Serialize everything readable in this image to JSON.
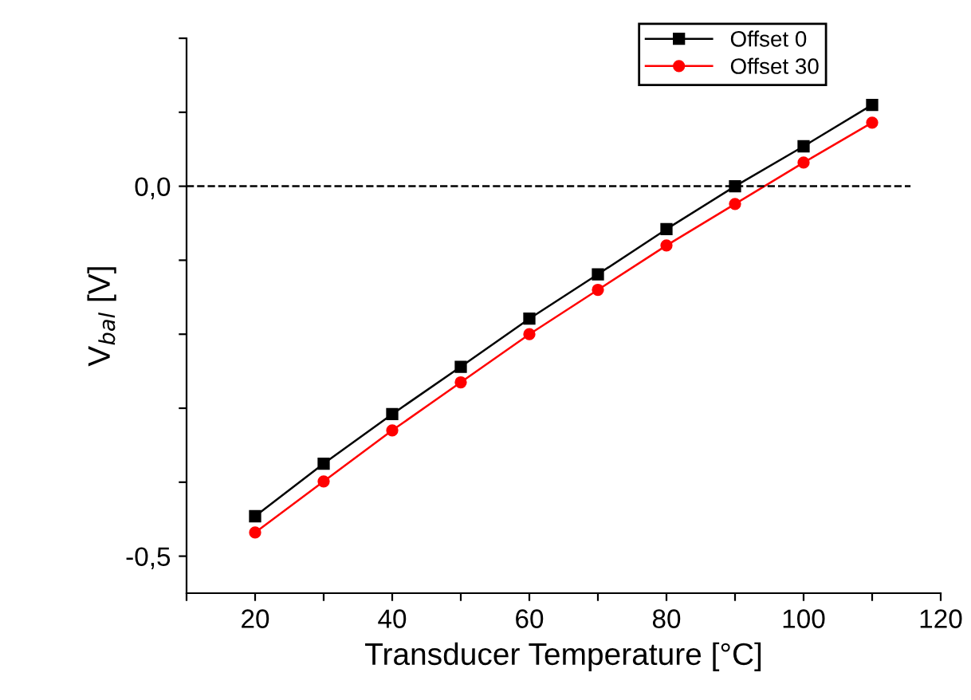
{
  "chart_data": {
    "type": "line",
    "xlabel": "Transducer Temperature [°C]",
    "ylabel": "V$_{bal}$ [V]",
    "x": [
      20,
      30,
      40,
      50,
      60,
      70,
      80,
      90,
      100,
      110
    ],
    "series": [
      {
        "name": "Offset 0",
        "color": "#000000",
        "marker": "square",
        "values": [
          -0.446,
          -0.375,
          -0.308,
          -0.244,
          -0.179,
          -0.119,
          -0.058,
          0.0,
          0.054,
          0.11
        ]
      },
      {
        "name": "Offset 30",
        "color": "#ff0000",
        "marker": "circle",
        "values": [
          -0.468,
          -0.399,
          -0.33,
          -0.265,
          -0.2,
          -0.14,
          -0.08,
          -0.024,
          0.032,
          0.086
        ]
      }
    ],
    "xlim": [
      10,
      120
    ],
    "ylim": [
      -0.55,
      0.2
    ],
    "xticks": [
      {
        "value": 10,
        "label": null
      },
      20,
      {
        "value": 30,
        "label": null
      },
      40,
      {
        "value": 50,
        "label": null
      },
      60,
      {
        "value": 70,
        "label": null
      },
      80,
      {
        "value": 90,
        "label": null
      },
      100,
      {
        "value": 110,
        "label": null
      },
      120
    ],
    "yticks": [
      {
        "value": -0.5,
        "label": "-0,5"
      },
      {
        "value": -0.4,
        "label": null
      },
      {
        "value": -0.3,
        "label": null
      },
      {
        "value": -0.2,
        "label": null
      },
      {
        "value": -0.1,
        "label": null
      },
      {
        "value": 0.0,
        "label": "0,0"
      },
      {
        "value": 0.1,
        "label": null
      },
      {
        "value": 0.2,
        "label": null
      }
    ],
    "ref_lines": [
      {
        "axis": "y",
        "value": 0.0,
        "color": "#000000",
        "line_style": "dashed"
      }
    ],
    "legend": "top right",
    "grid": false,
    "line_style": "solid"
  }
}
